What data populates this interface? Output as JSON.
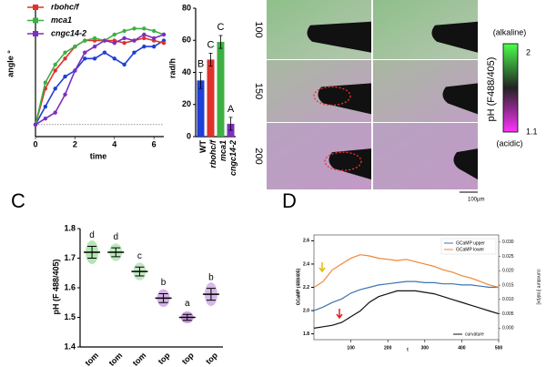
{
  "chart_data": [
    {
      "type": "line",
      "y_label": "angle °",
      "x_label": "time",
      "xlim": [
        0,
        6.5
      ],
      "xticks": [
        0,
        2,
        4,
        6
      ],
      "ylim": [
        -10,
        100
      ],
      "x": [
        0,
        0.5,
        1,
        1.5,
        2,
        2.5,
        3,
        3.5,
        4,
        4.5,
        5,
        5.5,
        6,
        6.5
      ],
      "series": [
        {
          "color": "#1f3fd6",
          "values": [
            0,
            15,
            30,
            40,
            45,
            55,
            55,
            60,
            55,
            50,
            60,
            65,
            65,
            70
          ]
        },
        {
          "name": "rbohc/f",
          "color": "#e0312b",
          "values": [
            0,
            30,
            45,
            55,
            65,
            70,
            70,
            70,
            70,
            68,
            70,
            72,
            70,
            68
          ]
        },
        {
          "name": "mca1",
          "color": "#3cb043",
          "values": [
            0,
            35,
            50,
            60,
            65,
            70,
            72,
            70,
            75,
            78,
            80,
            80,
            78,
            75
          ]
        },
        {
          "name": "cngc14-2",
          "color": "#7b2fbf",
          "values": [
            0,
            5,
            10,
            25,
            45,
            60,
            65,
            70,
            68,
            72,
            70,
            75,
            72,
            75
          ]
        }
      ]
    },
    {
      "type": "bar",
      "y_label": "rad/h",
      "categories": [
        "WT",
        "rbohc/f",
        "mca1",
        "cngc14-2"
      ],
      "values": [
        35,
        48,
        59,
        8
      ],
      "errors": [
        5,
        4,
        4,
        4
      ],
      "colors": [
        "#1f3fd6",
        "#e0312b",
        "#3cb043",
        "#7b2fbf"
      ],
      "letters": [
        "B",
        "C",
        "C",
        "A"
      ],
      "ylim": [
        0,
        80
      ],
      "yticks": [
        0,
        20,
        40,
        60,
        80
      ]
    },
    {
      "type": "strip",
      "y_label": "pH (F 488/405)",
      "categories": [
        "tom",
        "tom",
        "tom",
        "top",
        "top",
        "top"
      ],
      "values": [
        1.72,
        1.72,
        1.655,
        1.565,
        1.5,
        1.578
      ],
      "errors": [
        0.02,
        0.015,
        0.015,
        0.015,
        0.01,
        0.02
      ],
      "colors": [
        "#7fd67f",
        "#8fdc8f",
        "#9bd79b",
        "#b77fd6",
        "#a860d0",
        "#b98bd8"
      ],
      "letters": [
        "d",
        "d",
        "c",
        "b",
        "a",
        "b"
      ],
      "ylim": [
        1.4,
        1.8
      ],
      "yticks": [
        1.4,
        1.5,
        1.6,
        1.7,
        1.8
      ]
    },
    {
      "type": "line",
      "x_label": "t",
      "y_label": "GCaMP (488/405)",
      "y2_label": "curvature [rad/px]",
      "xlim": [
        0,
        500
      ],
      "xticks": [
        100,
        200,
        300,
        400,
        500
      ],
      "ylim": [
        1.75,
        2.65
      ],
      "yticks": [
        1.8,
        {
          "value": 2,
          "label": "2.0"
        },
        2.2,
        2.4,
        2.6
      ],
      "y2lim": [
        -0.004,
        0.0325
      ],
      "y2ticks": [
        {
          "value": 0,
          "label": "0.000"
        },
        {
          "value": 0.005,
          "label": "0.005"
        },
        {
          "value": 0.01,
          "label": "0.010"
        },
        {
          "value": 0.015,
          "label": "0.015"
        },
        {
          "value": 0.02,
          "label": "0.020"
        },
        {
          "value": 0.025,
          "label": "0.025"
        },
        {
          "value": 0.03,
          "label": "0.030"
        }
      ],
      "x": [
        0,
        25,
        50,
        75,
        100,
        125,
        150,
        175,
        200,
        225,
        250,
        275,
        300,
        325,
        350,
        375,
        400,
        425,
        450,
        475,
        500
      ],
      "series": [
        {
          "name": "GCaMP upper",
          "color": "#3b75af",
          "values": [
            2.0,
            2.03,
            2.07,
            2.1,
            2.15,
            2.18,
            2.2,
            2.22,
            2.23,
            2.24,
            2.25,
            2.25,
            2.24,
            2.24,
            2.23,
            2.23,
            2.22,
            2.22,
            2.21,
            2.2,
            2.2
          ]
        },
        {
          "name": "GCaMP lower",
          "color": "#ef8636",
          "values": [
            2.2,
            2.25,
            2.35,
            2.4,
            2.45,
            2.48,
            2.47,
            2.45,
            2.44,
            2.43,
            2.44,
            2.42,
            2.4,
            2.38,
            2.35,
            2.33,
            2.3,
            2.28,
            2.25,
            2.22,
            2.2
          ]
        },
        {
          "name": "curvature",
          "color": "#111111",
          "axis": "y2",
          "values": [
            0,
            0.0005,
            0.001,
            0.002,
            0.004,
            0.006,
            0.009,
            0.011,
            0.012,
            0.013,
            0.013,
            0.013,
            0.0125,
            0.012,
            0.011,
            0.01,
            0.009,
            0.008,
            0.007,
            0.006,
            0.005
          ]
        }
      ]
    }
  ],
  "image_panel": {
    "rows": [
      "100",
      "150",
      "200"
    ],
    "colorbar": {
      "title": "pH (F488/405)",
      "top_note": "(alkaline)",
      "top_value": 2,
      "bottom_note": "(acidic)",
      "bottom_value": 1.1
    },
    "scale_bar": "100µm"
  },
  "panel_labels": [
    "C",
    "D"
  ]
}
